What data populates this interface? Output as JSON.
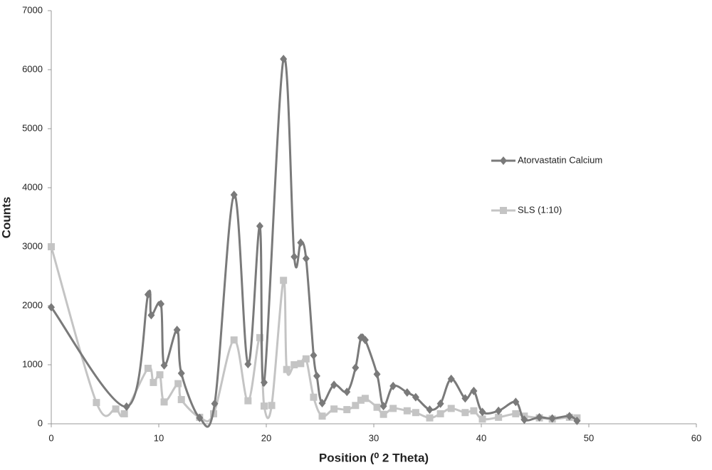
{
  "chart_data": {
    "type": "line",
    "xlabel": "Position (⁰ 2 Theta)",
    "ylabel": "Counts",
    "xlim": [
      0,
      60
    ],
    "xticks": [
      0,
      10,
      20,
      30,
      40,
      50,
      60
    ],
    "ylim": [
      0,
      7000
    ],
    "yticks": [
      0,
      1000,
      2000,
      3000,
      4000,
      5000,
      6000,
      7000
    ],
    "grid": false,
    "legend": "right",
    "series": [
      {
        "name": "Atorvastatin Calcium",
        "color": "#7a7a7a",
        "marker": "diamond",
        "x": [
          0,
          7.0,
          9.0,
          9.3,
          10.2,
          10.5,
          11.7,
          12.1,
          13.8,
          15.2,
          17.0,
          18.3,
          19.4,
          19.8,
          21.6,
          22.6,
          23.2,
          23.7,
          24.4,
          24.7,
          25.2,
          26.3,
          27.5,
          28.3,
          28.8,
          29.2,
          30.3,
          30.9,
          31.8,
          33.1,
          33.9,
          35.2,
          36.2,
          37.2,
          38.5,
          39.3,
          40.1,
          41.6,
          43.2,
          44.0,
          45.4,
          46.6,
          48.2,
          48.9
        ],
        "values": [
          1975,
          290,
          2190,
          1840,
          2030,
          990,
          1590,
          855,
          100,
          340,
          3880,
          1010,
          3350,
          700,
          6180,
          2830,
          3070,
          2800,
          1160,
          810,
          350,
          660,
          540,
          950,
          1460,
          1420,
          840,
          300,
          640,
          530,
          450,
          240,
          340,
          760,
          430,
          555,
          200,
          220,
          370,
          70,
          110,
          90,
          130,
          50
        ]
      },
      {
        "name": "SLS (1:10)",
        "color": "#c4c4c4",
        "marker": "square",
        "x": [
          0,
          4.2,
          6.0,
          6.8,
          9.0,
          9.5,
          10.1,
          10.5,
          11.8,
          12.1,
          13.8,
          15.1,
          17.0,
          18.3,
          19.4,
          19.8,
          20.5,
          21.6,
          21.9,
          22.6,
          23.2,
          23.7,
          24.4,
          25.2,
          26.3,
          27.5,
          28.3,
          28.8,
          29.2,
          30.3,
          30.9,
          31.8,
          33.1,
          33.9,
          35.2,
          36.2,
          37.2,
          38.5,
          39.3,
          40.1,
          41.6,
          43.2,
          44.0,
          45.4,
          46.6,
          48.2,
          48.9
        ],
        "values": [
          3000,
          360,
          250,
          170,
          940,
          700,
          830,
          370,
          680,
          410,
          110,
          170,
          1420,
          390,
          1460,
          300,
          310,
          2430,
          920,
          1000,
          1020,
          1100,
          450,
          130,
          250,
          240,
          310,
          400,
          430,
          280,
          160,
          260,
          220,
          190,
          100,
          170,
          260,
          190,
          220,
          80,
          110,
          170,
          130,
          100,
          80,
          110,
          100
        ]
      }
    ]
  }
}
